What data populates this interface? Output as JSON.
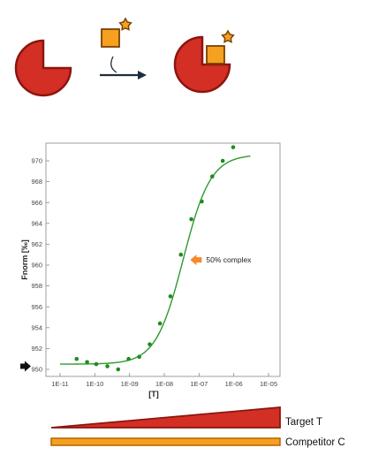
{
  "colors": {
    "red": "#d32f24",
    "red_dark": "#8c1510",
    "orange": "#f5a020",
    "orange_dark": "#b36400",
    "green": "#2e9a2e",
    "point": "#1e8c1e",
    "arrow_orange": "#f58a2a",
    "arrow_dark": "#1f2d3d"
  },
  "icons": [
    "protein-pacman-icon",
    "ligand-star-icon",
    "reaction-arrow-icon",
    "complex-icon",
    "baseline-marker-icon",
    "half-complex-marker-icon"
  ],
  "chart_data": {
    "type": "scatter",
    "xscale": "log",
    "xlabel": "[T]",
    "ylabel": "Fnorm [‰]",
    "xlim": [
      1e-11,
      1e-05
    ],
    "ylim": [
      949.5,
      971.5
    ],
    "x_ticks": [
      "1E-11",
      "1E-10",
      "1E-09",
      "1E-08",
      "1E-07",
      "1E-06",
      "1E-05"
    ],
    "y_ticks": [
      950,
      952,
      954,
      956,
      958,
      960,
      962,
      964,
      966,
      968,
      970
    ],
    "grid": false,
    "points": [
      {
        "x": 3e-11,
        "y": 951.0
      },
      {
        "x": 6e-11,
        "y": 950.7
      },
      {
        "x": 1.1e-10,
        "y": 950.5
      },
      {
        "x": 2.3e-10,
        "y": 950.3
      },
      {
        "x": 4.7e-10,
        "y": 950.0
      },
      {
        "x": 9.4e-10,
        "y": 951.0
      },
      {
        "x": 1.9e-09,
        "y": 951.2
      },
      {
        "x": 3.8e-09,
        "y": 952.4
      },
      {
        "x": 7.5e-09,
        "y": 954.4
      },
      {
        "x": 1.5e-08,
        "y": 957.0
      },
      {
        "x": 3e-08,
        "y": 961.0
      },
      {
        "x": 6e-08,
        "y": 964.4
      },
      {
        "x": 1.2e-07,
        "y": 966.1
      },
      {
        "x": 2.4e-07,
        "y": 968.5
      },
      {
        "x": 4.8e-07,
        "y": 970.0
      },
      {
        "x": 9.6e-07,
        "y": 971.3
      }
    ],
    "fit": {
      "bottom": 950.5,
      "top": 970.6,
      "ec50": 3.5e-08,
      "hill": 1.1,
      "x_start": 1e-11,
      "x_end": 3e-06
    },
    "annotation": {
      "text": "50% complex",
      "x": 3.5e-08,
      "y": 960.5
    },
    "baseline_marker_y": 950.3
  },
  "legend": {
    "target_label": "Target T",
    "competitor_label": "Competitor C"
  }
}
